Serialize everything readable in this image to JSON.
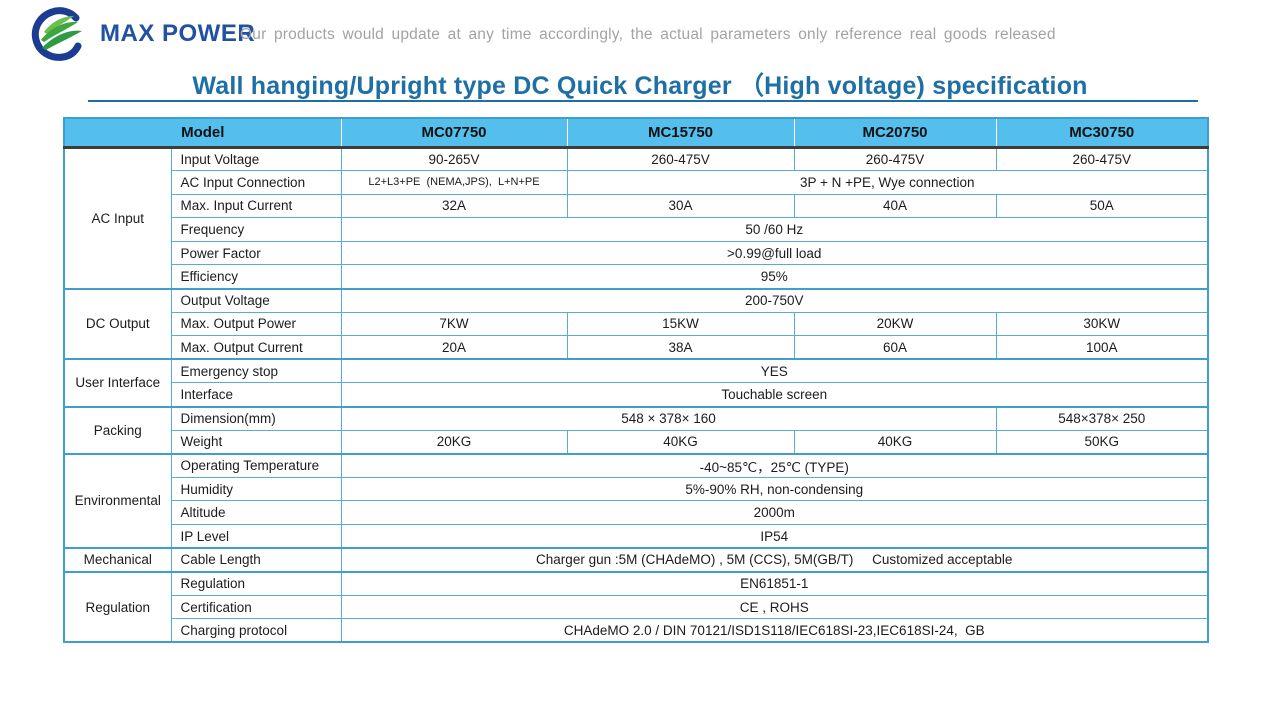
{
  "brand": {
    "name": "MAX POWER",
    "disclaimer": "Our products would update at any time accordingly, the actual parameters only reference real goods released",
    "logo_icon": "swirl-leaf-logo",
    "colors": {
      "name_blue": "#2151A3",
      "ring_blue": "#1C3C94",
      "leaf_green": "#3FA53F",
      "disclaimer_gray": "#A3A3A3"
    }
  },
  "title": {
    "text": "Wall hanging/Upright type DC Quick Charger （High voltage) specification",
    "color": "#1D6FA5"
  },
  "table": {
    "header_bg": "#54BEEC",
    "border_color": "#58ABDC",
    "columns": [
      "Model",
      "MC07750",
      "MC15750",
      "MC20750",
      "MC30750"
    ],
    "groups": [
      {
        "name": "AC Input",
        "rows": [
          {
            "label": "Input Voltage",
            "cells": [
              {
                "text": "90-265V",
                "span": 1
              },
              {
                "text": "260-475V",
                "span": 1
              },
              {
                "text": "260-475V",
                "span": 1
              },
              {
                "text": "260-475V",
                "span": 1
              }
            ]
          },
          {
            "label": "AC Input Connection",
            "cells": [
              {
                "text": "L2+L3+PE  (NEMA,JPS),  L+N+PE",
                "span": 1,
                "small": true
              },
              {
                "text": "3P + N +PE, Wye connection",
                "span": 3
              }
            ]
          },
          {
            "label": "Max. Input Current",
            "cells": [
              {
                "text": "32A",
                "span": 1
              },
              {
                "text": "30A",
                "span": 1
              },
              {
                "text": "40A",
                "span": 1
              },
              {
                "text": "50A",
                "span": 1
              }
            ]
          },
          {
            "label": "Frequency",
            "cells": [
              {
                "text": "50 /60 Hz",
                "span": 4
              }
            ]
          },
          {
            "label": "Power Factor",
            "cells": [
              {
                "text": ">0.99@full load",
                "span": 4
              }
            ]
          },
          {
            "label": "Efficiency",
            "cells": [
              {
                "text": "95%",
                "span": 4
              }
            ]
          }
        ]
      },
      {
        "name": "DC Output",
        "rows": [
          {
            "label": "Output Voltage",
            "cells": [
              {
                "text": "200-750V",
                "span": 4
              }
            ]
          },
          {
            "label": "Max. Output Power",
            "cells": [
              {
                "text": "7KW",
                "span": 1
              },
              {
                "text": "15KW",
                "span": 1
              },
              {
                "text": "20KW",
                "span": 1
              },
              {
                "text": "30KW",
                "span": 1
              }
            ]
          },
          {
            "label": "Max. Output Current",
            "cells": [
              {
                "text": "20A",
                "span": 1
              },
              {
                "text": "38A",
                "span": 1
              },
              {
                "text": "60A",
                "span": 1
              },
              {
                "text": "100A",
                "span": 1
              }
            ]
          }
        ]
      },
      {
        "name": "User Interface",
        "rows": [
          {
            "label": "Emergency stop",
            "cells": [
              {
                "text": "YES",
                "span": 4
              }
            ]
          },
          {
            "label": "Interface",
            "cells": [
              {
                "text": "Touchable screen",
                "span": 4
              }
            ]
          }
        ]
      },
      {
        "name": "Packing",
        "rows": [
          {
            "label": "Dimension(mm)",
            "cells": [
              {
                "text": "548 × 378× 160",
                "span": 3
              },
              {
                "text": "548×378× 250",
                "span": 1
              }
            ]
          },
          {
            "label": "Weight",
            "cells": [
              {
                "text": "20KG",
                "span": 1
              },
              {
                "text": "40KG",
                "span": 1
              },
              {
                "text": "40KG",
                "span": 1
              },
              {
                "text": "50KG",
                "span": 1
              }
            ]
          }
        ]
      },
      {
        "name": "Environmental",
        "rows": [
          {
            "label": "Operating Temperature",
            "cells": [
              {
                "text": "-40~85℃，25℃ (TYPE)",
                "span": 4
              }
            ]
          },
          {
            "label": "Humidity",
            "cells": [
              {
                "text": "5%-90% RH, non-condensing",
                "span": 4
              }
            ]
          },
          {
            "label": "Altitude",
            "cells": [
              {
                "text": "2000m",
                "span": 4
              }
            ]
          },
          {
            "label": "IP Level",
            "cells": [
              {
                "text": "IP54",
                "span": 4
              }
            ]
          }
        ]
      },
      {
        "name": "Mechanical",
        "rows": [
          {
            "label": "Cable Length",
            "cells": [
              {
                "text": "Charger gun :5M (CHAdeMO) , 5M (CCS), 5M(GB/T)     Customized acceptable",
                "span": 4
              }
            ]
          }
        ]
      },
      {
        "name": "Regulation",
        "rows": [
          {
            "label": "Regulation",
            "cells": [
              {
                "text": "EN61851-1",
                "span": 4
              }
            ]
          },
          {
            "label": "Certification",
            "cells": [
              {
                "text": "CE , ROHS",
                "span": 4
              }
            ]
          },
          {
            "label": "Charging protocol",
            "cells": [
              {
                "text": "CHAdeMO 2.0 / DIN 70121/ISD1S118/IEC618SI-23,IEC618SI-24,  GB",
                "span": 4
              }
            ]
          }
        ]
      }
    ]
  }
}
